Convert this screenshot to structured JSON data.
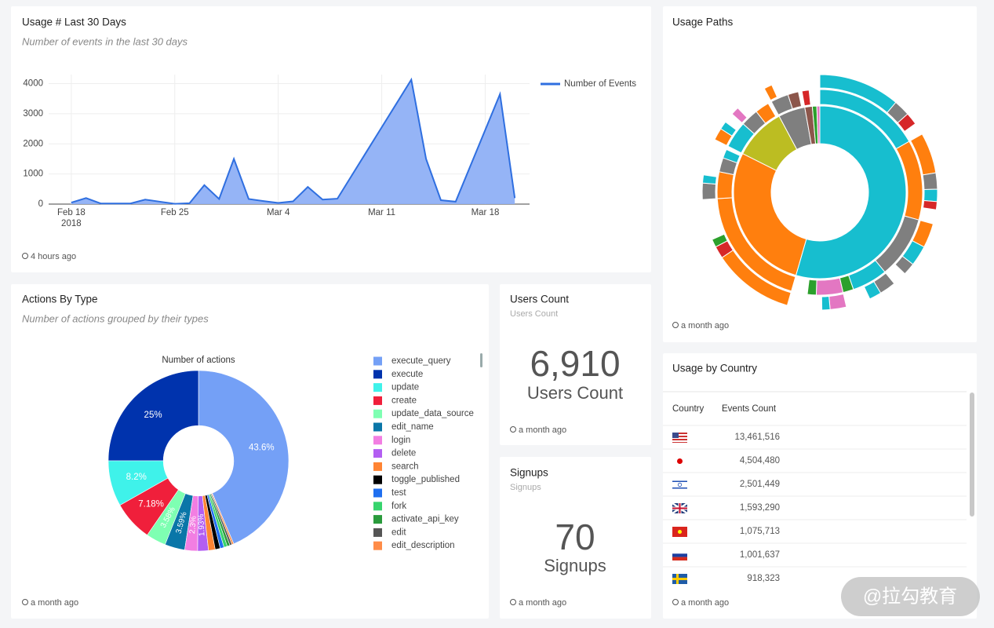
{
  "chart_data": [
    {
      "type": "line",
      "title": "Usage # Last 30 Days",
      "subtitle": "Number of events in the last 30 days",
      "updated": "4 hours ago",
      "x": [
        "2018-02-18",
        "2018-02-19",
        "2018-02-20",
        "2018-02-21",
        "2018-02-22",
        "2018-02-23",
        "2018-02-24",
        "2018-02-25",
        "2018-02-26",
        "2018-02-27",
        "2018-02-28",
        "2018-03-01",
        "2018-03-02",
        "2018-03-03",
        "2018-03-04",
        "2018-03-05",
        "2018-03-06",
        "2018-03-07",
        "2018-03-08",
        "2018-03-09",
        "2018-03-10",
        "2018-03-11",
        "2018-03-12",
        "2018-03-13",
        "2018-03-14",
        "2018-03-15",
        "2018-03-16",
        "2018-03-17",
        "2018-03-18",
        "2018-03-19",
        "2018-03-20"
      ],
      "series": [
        {
          "name": "Number of Events",
          "color": "#2f6fe0",
          "fill": "#8fb0f5",
          "values": [
            50,
            200,
            20,
            20,
            20,
            150,
            80,
            10,
            30,
            630,
            170,
            1500,
            170,
            100,
            40,
            90,
            570,
            150,
            180,
            970,
            1760,
            2550,
            3340,
            4130,
            1500,
            130,
            80,
            1270,
            2460,
            3650,
            200
          ]
        }
      ],
      "xlim": [
        "2018-02-17",
        "2018-03-21"
      ],
      "xticks": [
        {
          "value": "2018-02-18",
          "label": [
            "Feb 18",
            "2018"
          ]
        },
        {
          "value": "2018-02-25",
          "label": [
            "Feb 25"
          ]
        },
        {
          "value": "2018-03-04",
          "label": [
            "Mar 4"
          ]
        },
        {
          "value": "2018-03-11",
          "label": [
            "Mar 11"
          ]
        },
        {
          "value": "2018-03-18",
          "label": [
            "Mar 18"
          ]
        }
      ],
      "ylim": [
        0,
        4300
      ],
      "yticks": [
        0,
        1000,
        2000,
        3000,
        4000
      ],
      "grid": true,
      "legend": "top-right"
    },
    {
      "type": "pie",
      "title": "Actions By Type",
      "subtitle": "Number of actions grouped by their types",
      "chart_title": "Number of actions",
      "updated": "a month ago",
      "hole": 0.39,
      "categories": [
        "execute_query",
        "execute",
        "update",
        "create",
        "update_data_source",
        "edit_name",
        "login",
        "delete",
        "search",
        "toggle_published",
        "test",
        "fork",
        "activate_api_key",
        "edit",
        "edit_description"
      ],
      "values": [
        43.6,
        25,
        8.2,
        7.18,
        3.58,
        3.59,
        2.3,
        1.93,
        1.2,
        0.9,
        0.7,
        0.6,
        0.5,
        0.4,
        0.32
      ],
      "value_labels": [
        "43.6%",
        "25%",
        "8.2%",
        "7.18%",
        "3.58%",
        "3.59%",
        "2.3%",
        "1.93%",
        null,
        null,
        null,
        null,
        null,
        null,
        null
      ],
      "colors": [
        "#74a0f6",
        "#0033ad",
        "#3ff2ea",
        "#f01f3b",
        "#7effb2",
        "#0a76a8",
        "#f27ee2",
        "#b35ef2",
        "#ff8433",
        "#000000",
        "#1f6ff0",
        "#37d46d",
        "#2a9b3c",
        "#555555",
        "#ff8c48"
      ]
    },
    {
      "type": "sunburst",
      "title": "Usage Paths",
      "updated": "a month ago",
      "nodes": [
        {
          "value": 195,
          "color": "#17becf",
          "children": [
            {
              "value": 60,
              "color": "#17becf",
              "children": [
                {
                  "value": 40,
                  "color": "#17becf"
                },
                {
                  "value": 8,
                  "color": "#7f7f7f"
                },
                {
                  "value": 6,
                  "color": "#d62728"
                }
              ]
            },
            {
              "value": 45,
              "color": "#ff7f0e",
              "children": [
                {
                  "value": 20,
                  "color": "#ff7f0e"
                },
                {
                  "value": 8,
                  "color": "#7f7f7f"
                },
                {
                  "value": 6,
                  "color": "#17becf"
                },
                {
                  "value": 4,
                  "color": "#d62728"
                }
              ]
            },
            {
              "value": 35,
              "color": "#7f7f7f",
              "children": [
                {
                  "value": 12,
                  "color": "#ff7f0e"
                },
                {
                  "value": 10,
                  "color": "#17becf"
                },
                {
                  "value": 6,
                  "color": "#7f7f7f"
                }
              ]
            },
            {
              "value": 20,
              "color": "#17becf",
              "children": [
                {
                  "value": 8,
                  "color": "#7f7f7f"
                },
                {
                  "value": 6,
                  "color": "#17becf"
                }
              ]
            },
            {
              "value": 6,
              "color": "#2ca02c"
            },
            {
              "value": 15,
              "color": "#e377c2",
              "children": [
                {
                  "value": 8,
                  "color": "#e377c2"
                },
                {
                  "value": 4,
                  "color": "#17becf"
                }
              ]
            },
            {
              "value": 5,
              "color": "#2ca02c"
            }
          ]
        },
        {
          "value": 100,
          "color": "#ff7f0e",
          "children": [
            {
              "value": 70,
              "color": "#ff7f0e",
              "children": [
                {
                  "value": 40,
                  "color": "#ff7f0e"
                },
                {
                  "value": 6,
                  "color": "#d62728"
                },
                {
                  "value": 4,
                  "color": "#2ca02c"
                }
              ]
            },
            {
              "value": 15,
              "color": "#ff7f0e",
              "children": [
                {
                  "value": 8,
                  "color": "#7f7f7f"
                },
                {
                  "value": 4,
                  "color": "#17becf"
                }
              ]
            },
            {
              "value": 8,
              "color": "#7f7f7f"
            },
            {
              "value": 5,
              "color": "#17becf"
            }
          ]
        },
        {
          "value": 35,
          "color": "#bcbd22",
          "children": [
            {
              "value": 15,
              "color": "#17becf",
              "children": [
                {
                  "value": 6,
                  "color": "#ff7f0e"
                },
                {
                  "value": 4,
                  "color": "#17becf"
                }
              ]
            },
            {
              "value": 10,
              "color": "#7f7f7f",
              "children": [
                {
                  "value": 4,
                  "color": "#e377c2"
                }
              ]
            },
            {
              "value": 8,
              "color": "#ff7f0e"
            }
          ]
        },
        {
          "value": 18,
          "color": "#7f7f7f",
          "children": [
            {
              "value": 10,
              "color": "#7f7f7f",
              "children": [
                {
                  "value": 4,
                  "color": "#ff7f0e"
                }
              ]
            },
            {
              "value": 6,
              "color": "#8c564b"
            }
          ]
        },
        {
          "value": 5,
          "color": "#8c564b",
          "children": [
            {
              "value": 4,
              "color": "#d62728"
            }
          ]
        },
        {
          "value": 3,
          "color": "#2ca02c"
        },
        {
          "value": 2,
          "color": "#e377c2"
        }
      ]
    }
  ],
  "counters": [
    {
      "title": "Users Count",
      "subtitle": "Users Count",
      "value": "6,910",
      "label": "Users Count",
      "updated": "a month ago"
    },
    {
      "title": "Signups",
      "subtitle": "Signups",
      "value": "70",
      "label": "Signups",
      "updated": "a month ago"
    }
  ],
  "table": {
    "title": "Usage by Country",
    "columns": [
      "Country",
      "Events Count"
    ],
    "rows": [
      "13,461,516",
      "4,504,480",
      "2,501,449",
      "1,593,290",
      "1,075,713",
      "1,001,637",
      "918,323"
    ],
    "updated": "a month ago"
  },
  "watermark": "@拉勾教育"
}
